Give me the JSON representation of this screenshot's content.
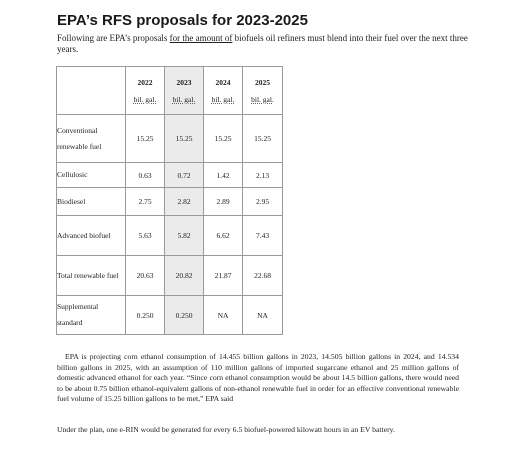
{
  "doc": {
    "title": "EPA’s RFS proposals for 2023-2025",
    "subtitle_pre": "Following are EPA’s proposals ",
    "subtitle_link": "for the amount of",
    "subtitle_post": " biofuels oil refiners must blend into their fuel over the next three years."
  },
  "table": {
    "years": [
      "2022",
      "2023",
      "2024",
      "2025"
    ],
    "unit": "bil. gal.",
    "rows": [
      {
        "label": "Conventional renewable fuel",
        "values": [
          "15.25",
          "15.25",
          "15.25",
          "15.25"
        ]
      },
      {
        "label": "Cellulosic",
        "values": [
          "0.63",
          "0.72",
          "1.42",
          "2.13"
        ]
      },
      {
        "label": "Biodiesel",
        "values": [
          "2.75",
          "2.82",
          "2.89",
          "2.95"
        ]
      },
      {
        "label": "Advanced biofuel",
        "values": [
          "5.63",
          "5.82",
          "6.62",
          "7.43"
        ]
      },
      {
        "label": "Total renewable fuel",
        "values": [
          "20.63",
          "20.82",
          "21.87",
          "22.68"
        ]
      },
      {
        "label": "Supplemental standard",
        "values": [
          "0.250",
          "0.250",
          "NA",
          "NA"
        ]
      }
    ]
  },
  "body": {
    "paragraph1": "EPA is projecting corn ethanol consumption of 14.455 billion gallons in 2023, 14.505 billion gallons in 2024, and 14.534 billion gallons in 2025, with an assumption of 110 million gallons of imported sugarcane ethanol and 25 million gallons of domestic advanced ethanol for each year. “Since corn ethanol consumption would be about 14.5 billion gallons, there would need to be about 0.75 billion ethanol-equivalent gallons of non-ethanol renewable fuel in order for an effective conventional renewable fuel volume of 15.25 billion gallons to be met,” EPA said",
    "paragraph2": "Under the plan, one e-RIN would be generated for every 6.5 biofuel-powered kilowatt hours in an EV battery."
  }
}
